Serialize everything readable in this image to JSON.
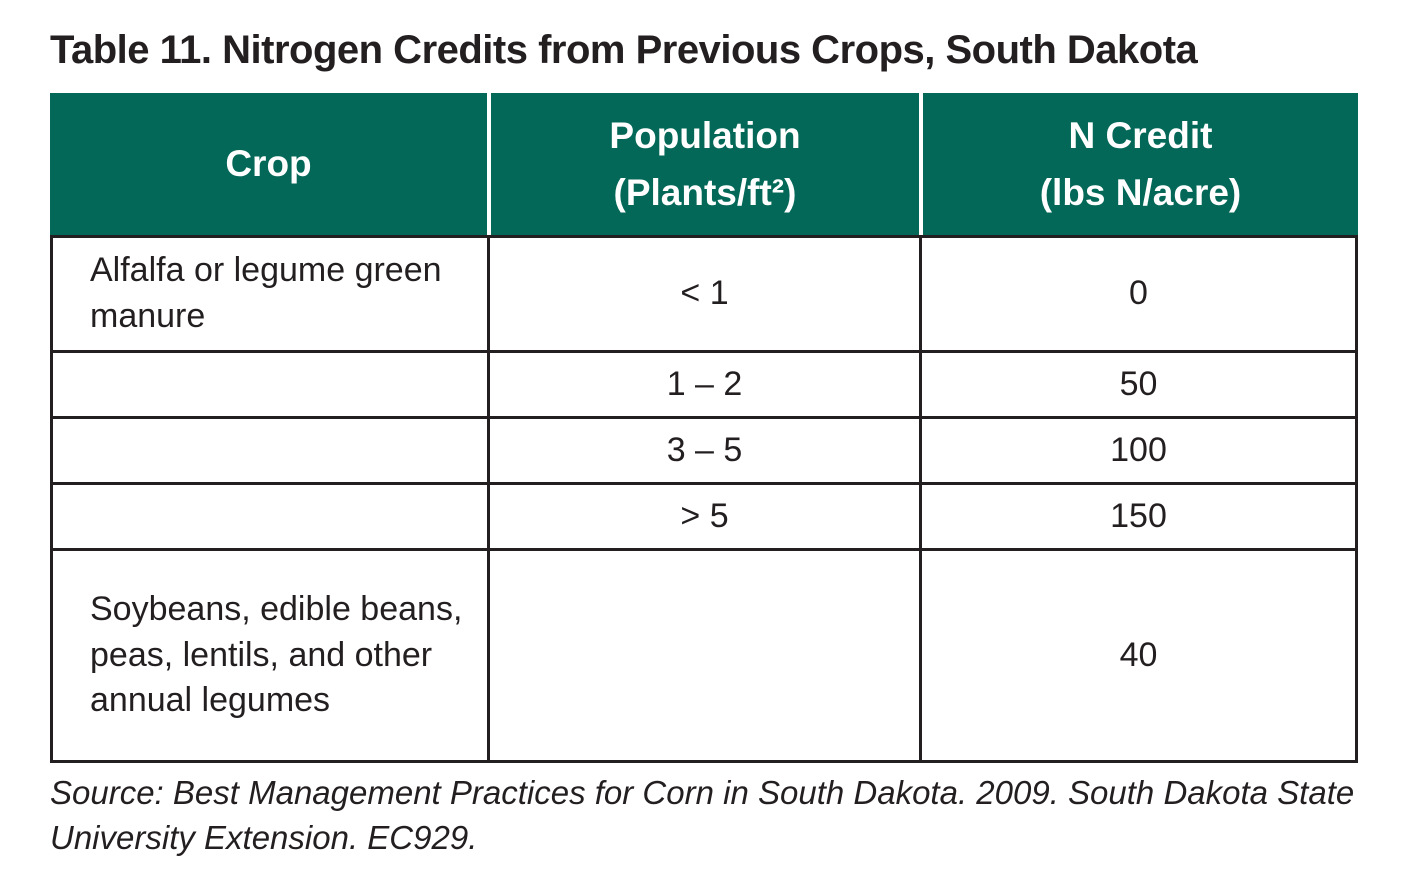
{
  "title": "Table 11. Nitrogen Credits from Previous Crops, South Dakota",
  "table": {
    "columns": [
      {
        "title": "Crop",
        "subtitle": ""
      },
      {
        "title": "Population",
        "subtitle": "(Plants/ft²)"
      },
      {
        "title": "N Credit",
        "subtitle": "(lbs N/acre)"
      }
    ],
    "rows": [
      {
        "crop": "Alfalfa or legume green manure",
        "population": "< 1",
        "n_credit": "0"
      },
      {
        "crop": "",
        "population": "1 – 2",
        "n_credit": "50"
      },
      {
        "crop": "",
        "population": "3 – 5",
        "n_credit": "100"
      },
      {
        "crop": "",
        "population": "> 5",
        "n_credit": "150"
      },
      {
        "crop": "Soybeans, edible beans, peas, lentils, and other annual legumes",
        "population": "",
        "n_credit": "40"
      }
    ]
  },
  "source": "Source: Best Management Practices for Corn in South Dakota. 2009. South Dakota State University Extension. EC929.",
  "colors": {
    "header_bg": "#046858",
    "header_text": "#ffffff",
    "body_text": "#231f20",
    "border": "#231f20",
    "background": "#ffffff"
  }
}
